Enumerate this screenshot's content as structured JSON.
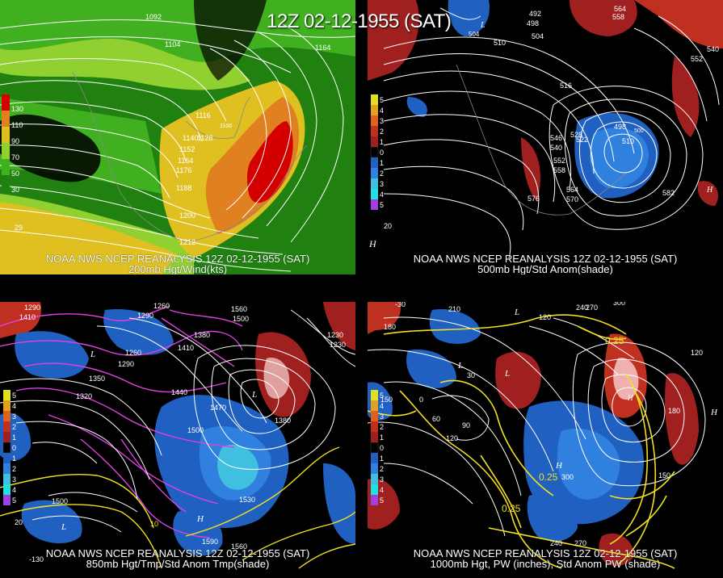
{
  "title": "12Z 02-12-1955 (SAT)",
  "panels": {
    "top_left": {
      "caption1": "NOAA NWS NCEP REANALYSIS 12Z 02-12-1955 (SAT)",
      "caption2": "200mb Hgt/Wind(kts)",
      "legend": [
        "130",
        "110",
        "90",
        "70",
        "50",
        "30"
      ],
      "legend_colors": [
        "#d40000",
        "#e08020",
        "#e0c020",
        "#90d030",
        "#40b020",
        "#208010"
      ],
      "contour_labels": [
        "1092",
        "1104",
        "1164",
        "1116",
        "1106",
        "1140",
        "1128",
        "1152",
        "1164",
        "1176",
        "1188",
        "1200",
        "1212",
        "1176",
        "29",
        "1164"
      ]
    },
    "top_right": {
      "caption1": "NOAA NWS NCEP REANALYSIS 12Z 02-12-1955 (SAT)",
      "caption2": "500mb Hgt/Std Anom(shade)",
      "legend": [
        "5",
        "4",
        "3",
        "2",
        "1",
        "0",
        "1",
        "2",
        "3",
        "4",
        "5"
      ],
      "legend_colors": [
        "#e0e020",
        "#e0a020",
        "#e06020",
        "#c03020",
        "#a02020",
        "#000000",
        "#2060c0",
        "#3080e0",
        "#40c0e0",
        "#20e0e0",
        "#a040e0"
      ],
      "contour_labels": [
        "492",
        "498",
        "504",
        "564",
        "558",
        "510",
        "540",
        "552",
        "516",
        "546",
        "540",
        "552",
        "558",
        "564",
        "570",
        "576",
        "582",
        "504",
        "498",
        "534",
        "528",
        "522",
        "510",
        "500",
        "20"
      ],
      "high_low": [
        "H",
        "H",
        "L"
      ]
    },
    "bottom_left": {
      "caption1": "NOAA NWS NCEP REANALYSIS 12Z 02-12-1955 (SAT)",
      "caption2": "850mb Hgt/Tmp/Std Anom Tmp(shade)",
      "legend": [
        "5",
        "4",
        "3",
        "2",
        "1",
        "0",
        "1",
        "2",
        "3",
        "4",
        "5"
      ],
      "legend_colors": [
        "#e0e020",
        "#e0a020",
        "#e06020",
        "#c03020",
        "#a02020",
        "#000000",
        "#2060c0",
        "#3080e0",
        "#40c0e0",
        "#20e0e0",
        "#a040e0"
      ],
      "contour_labels": [
        "1290",
        "1410",
        "1290",
        "1260",
        "1380",
        "1560",
        "1500",
        "1260",
        "1410",
        "1230",
        "1350",
        "1290",
        "1320",
        "1440",
        "1470",
        "1500",
        "1380",
        "1230",
        "1530",
        "1500",
        "1590",
        "1560",
        "1500",
        "20",
        "10",
        "-130"
      ],
      "high_low": [
        "L",
        "L",
        "H",
        "L"
      ]
    },
    "bottom_right": {
      "caption1": "NOAA NWS NCEP REANALYSIS 12Z 02-12-1955 (SAT)",
      "caption2": "1000mb Hgt, PW (inches), Std Anom PW (shade)",
      "legend": [
        "5",
        "4",
        "3",
        "2",
        "1",
        "0",
        "1",
        "2",
        "3",
        "4",
        "5"
      ],
      "legend_colors": [
        "#e0e020",
        "#e0a020",
        "#e06020",
        "#c03020",
        "#a02020",
        "#000000",
        "#2060c0",
        "#3080e0",
        "#40c0e0",
        "#20e0e0",
        "#a040e0"
      ],
      "contour_labels": [
        "-30",
        "210",
        "180",
        "120",
        "240",
        "270",
        "300",
        "0.25",
        "60",
        "90",
        "150",
        "120",
        "30",
        "0",
        "0.25",
        "300",
        "0.25",
        "240",
        "270",
        "180",
        "150",
        "210",
        "120"
      ],
      "high_low": [
        "L",
        "L",
        "L",
        "H",
        "H",
        "H"
      ]
    }
  },
  "colors": {
    "background": "#000000",
    "contour": "#ffffff",
    "yellow_contour": "#f0e020",
    "magenta_contour": "#e040e0"
  }
}
